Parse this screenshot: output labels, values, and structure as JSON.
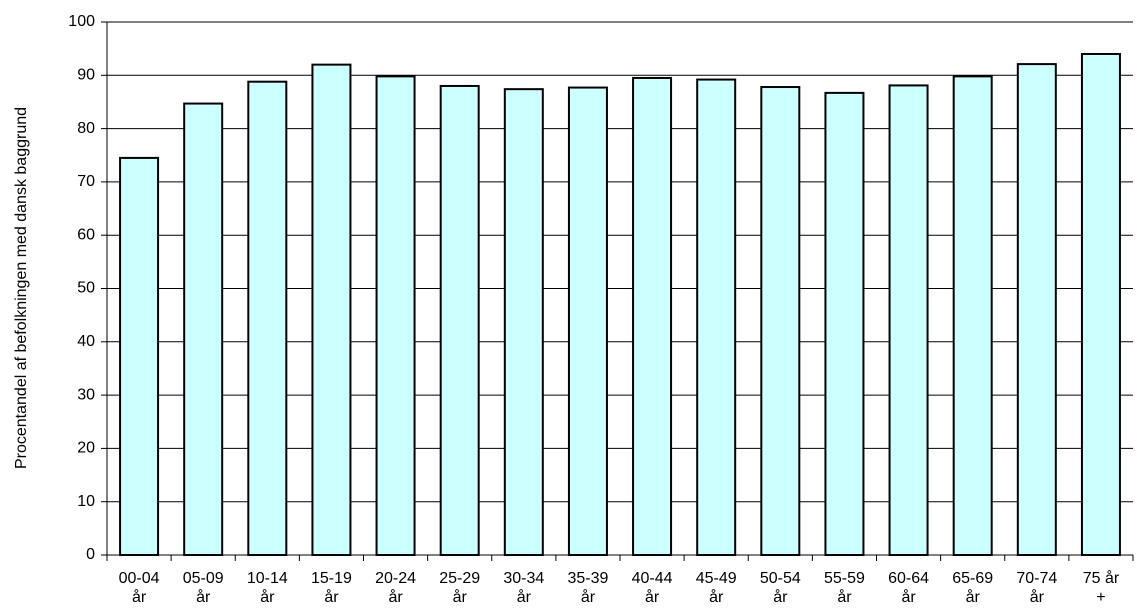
{
  "chart_data": {
    "type": "bar",
    "y_label": "Procentandel af befolkningen med dansk baggrund",
    "categories": [
      "00-04 år",
      "05-09 år",
      "10-14 år",
      "15-19 år",
      "20-24 år",
      "25-29 år",
      "30-34 år",
      "35-39 år",
      "40-44 år",
      "45-49 år",
      "50-54 år",
      "55-59 år",
      "60-64 år",
      "65-69 år",
      "70-74 år",
      "75 år +"
    ],
    "values": [
      74.5,
      84.7,
      88.8,
      92.0,
      89.8,
      88.0,
      87.4,
      87.7,
      89.5,
      89.2,
      87.8,
      86.7,
      88.1,
      89.8,
      92.1,
      94.0
    ],
    "color": "#ccffff",
    "ylim": [
      0,
      100
    ],
    "yticks": [
      0,
      10,
      20,
      30,
      40,
      50,
      60,
      70,
      80,
      90,
      100
    ],
    "grid": true
  }
}
